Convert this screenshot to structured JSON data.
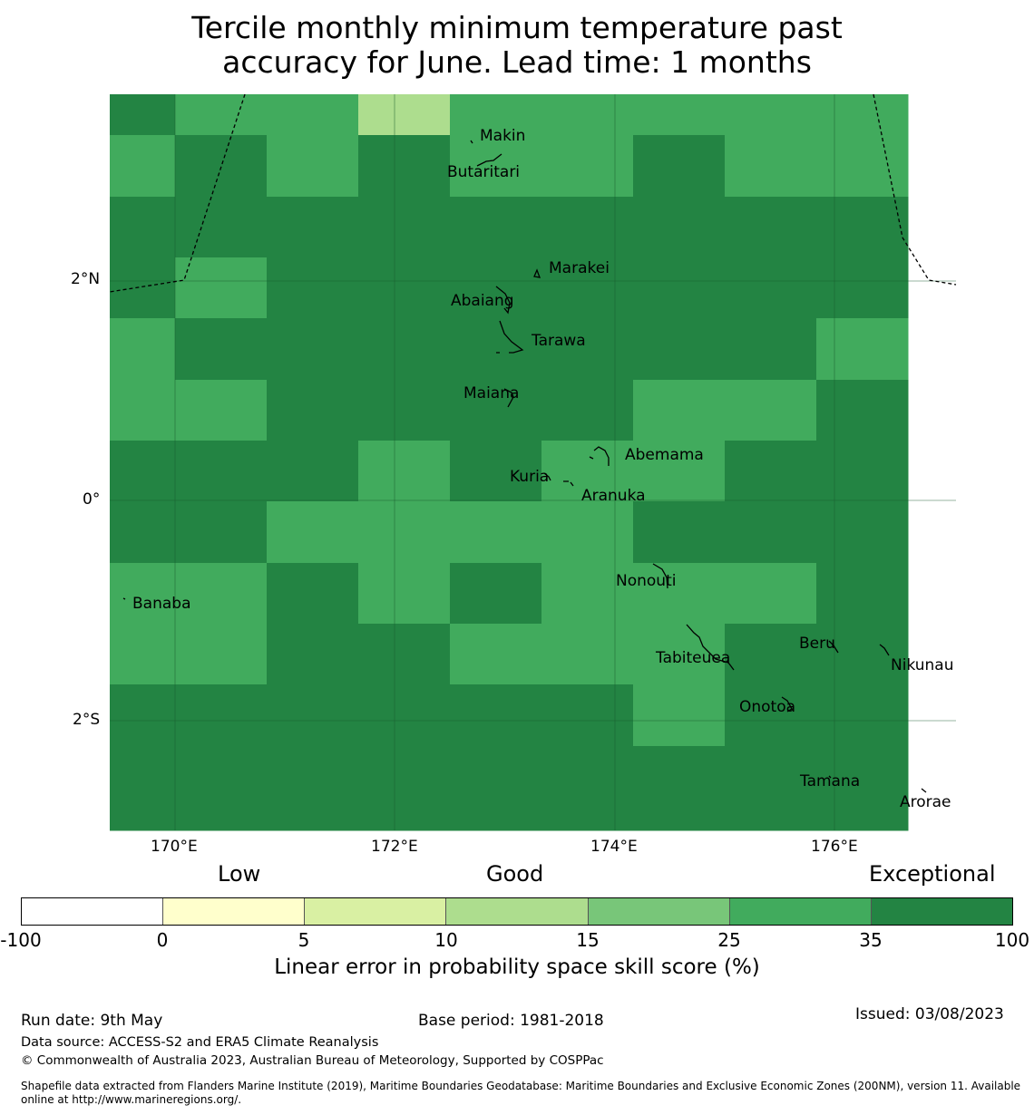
{
  "title_line1": "Tercile monthly minimum temperature past",
  "title_line2": "accuracy for June. Lead time: 1 months",
  "map": {
    "lon_labels": [
      "170°E",
      "172°E",
      "174°E",
      "176°E"
    ],
    "lat_labels": [
      "2°N",
      "0°",
      "2°S"
    ],
    "skill_grid": [
      [
        "100",
        "35",
        "35",
        "15",
        "35",
        "35",
        "35",
        "35",
        "35"
      ],
      [
        "35",
        "100",
        "35",
        "100",
        "35",
        "35",
        "100",
        "35",
        "35"
      ],
      [
        "100",
        "100",
        "100",
        "100",
        "100",
        "100",
        "100",
        "100",
        "100"
      ],
      [
        "100",
        "35",
        "100",
        "100",
        "100",
        "100",
        "100",
        "100",
        "100"
      ],
      [
        "35",
        "100",
        "100",
        "100",
        "100",
        "100",
        "100",
        "100",
        "35"
      ],
      [
        "35",
        "35",
        "100",
        "100",
        "100",
        "100",
        "35",
        "35",
        "100"
      ],
      [
        "100",
        "100",
        "100",
        "35",
        "100",
        "35",
        "35",
        "100",
        "100"
      ],
      [
        "100",
        "100",
        "35",
        "35",
        "35",
        "35",
        "100",
        "100",
        "100"
      ],
      [
        "35",
        "35",
        "100",
        "35",
        "100",
        "35",
        "35",
        "35",
        "100"
      ],
      [
        "35",
        "35",
        "100",
        "100",
        "35",
        "35",
        "35",
        "100",
        "100"
      ],
      [
        "100",
        "100",
        "100",
        "100",
        "100",
        "100",
        "35",
        "100",
        "100"
      ],
      [
        "100",
        "100",
        "100",
        "100",
        "100",
        "100",
        "100",
        "100",
        "100"
      ]
    ],
    "islands": [
      {
        "name": "Makin"
      },
      {
        "name": "Butaritari"
      },
      {
        "name": "Marakei"
      },
      {
        "name": "Abaiang"
      },
      {
        "name": "Tarawa"
      },
      {
        "name": "Maiana"
      },
      {
        "name": "Abemama"
      },
      {
        "name": "Kuria"
      },
      {
        "name": "Aranuka"
      },
      {
        "name": "Nonouti"
      },
      {
        "name": "Banaba"
      },
      {
        "name": "Tabiteuea"
      },
      {
        "name": "Beru"
      },
      {
        "name": "Nikunau"
      },
      {
        "name": "Onotoa"
      },
      {
        "name": "Tamana"
      },
      {
        "name": "Arorae"
      }
    ]
  },
  "colorbar": {
    "words": {
      "low": "Low",
      "good": "Good",
      "exceptional": "Exceptional"
    },
    "segments": [
      {
        "from": "-100",
        "to": "0",
        "color": "#ffffff"
      },
      {
        "from": "0",
        "to": "5",
        "color": "#ffffcc"
      },
      {
        "from": "5",
        "to": "10",
        "color": "#d9f0a3"
      },
      {
        "from": "10",
        "to": "15",
        "color": "#addd8e"
      },
      {
        "from": "15",
        "to": "25",
        "color": "#78c679"
      },
      {
        "from": "25",
        "to": "35",
        "color": "#41ab5d"
      },
      {
        "from": "35",
        "to": "100",
        "color": "#238443"
      }
    ],
    "ticks": [
      "-100",
      "0",
      "5",
      "10",
      "15",
      "25",
      "35",
      "100"
    ],
    "label": "Linear error in probability space skill score (%)"
  },
  "footer": {
    "run_date": "Run date: 9th May",
    "base_period": "Base period: 1981-2018",
    "issued": "Issued: 03/08/2023",
    "data_source": "Data source: ACCESS-S2 and ERA5 Climate Reanalysis",
    "copyright": "© Commonwealth of Australia 2023, Australian Bureau of Meteorology, Supported by COSPPac",
    "shapefile_line1": "Shapefile data extracted from Flanders Marine Institute (2019), Maritime Boundaries Geodatabase: Maritime Boundaries and Exclusive Economic Zones (200NM), version 11. Available",
    "shapefile_line2": "online at http://www.marineregions.org/."
  }
}
